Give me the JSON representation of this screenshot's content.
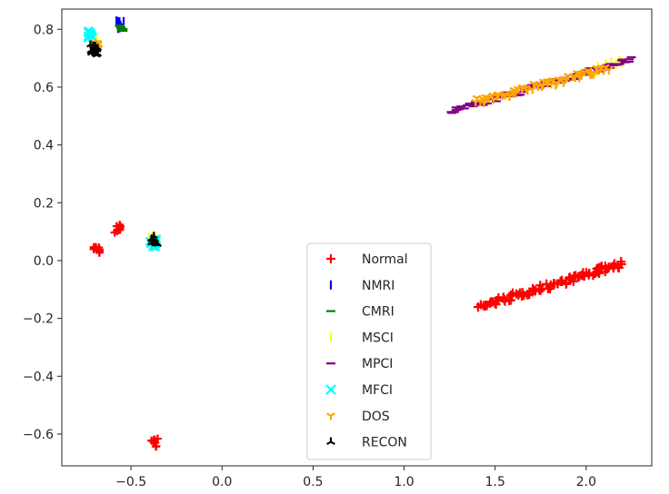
{
  "chart_data": {
    "type": "scatter",
    "title": "",
    "xlabel": "",
    "ylabel": "",
    "xlim": [
      -0.88,
      2.36
    ],
    "ylim": [
      -0.71,
      0.87
    ],
    "grid": false,
    "legend_placement": "lower-center",
    "x_ticks": [
      -0.5,
      0.0,
      0.5,
      1.0,
      1.5,
      2.0
    ],
    "x_tick_labels": [
      "−0.5",
      "0.0",
      "0.5",
      "1.0",
      "1.5",
      "2.0"
    ],
    "y_ticks": [
      0.8,
      0.6,
      0.4,
      0.2,
      0.0,
      -0.2,
      -0.4,
      -0.6
    ],
    "y_tick_labels": [
      "0.8",
      "0.6",
      "0.4",
      "0.2",
      "0.0",
      "−0.2",
      "−0.4",
      "−0.6"
    ],
    "series": [
      {
        "name": "Normal",
        "marker": "plus",
        "color": "#ff0000",
        "clusters": [
          [
            -0.57,
            0.11
          ],
          [
            -0.69,
            0.04
          ],
          [
            -0.37,
            -0.63
          ]
        ],
        "band": {
          "from": [
            1.41,
            -0.16
          ],
          "to": [
            2.2,
            -0.01
          ],
          "count": 90
        }
      },
      {
        "name": "NMRI",
        "marker": "vline",
        "color": "#0000ff",
        "clusters": [
          [
            -0.56,
            0.815
          ]
        ]
      },
      {
        "name": "CMRI",
        "marker": "hline",
        "color": "#008000",
        "clusters": [
          [
            -0.56,
            0.81
          ]
        ]
      },
      {
        "name": "MSCI",
        "marker": "vline",
        "color": "#ffff00",
        "clusters": [
          [
            -0.7,
            0.75
          ],
          [
            -0.38,
            0.07
          ]
        ],
        "band": {
          "from": [
            2.05,
            0.66
          ],
          "to": [
            2.2,
            0.69
          ],
          "count": 8
        }
      },
      {
        "name": "MPCI",
        "marker": "hline",
        "color": "#800080",
        "band": {
          "from": [
            1.25,
            0.515
          ],
          "to": [
            2.25,
            0.695
          ],
          "count": 90
        }
      },
      {
        "name": "MFCI",
        "marker": "x",
        "color": "#00ffff",
        "clusters": [
          [
            -0.72,
            0.78
          ],
          [
            -0.38,
            0.06
          ]
        ]
      },
      {
        "name": "DOS",
        "marker": "tri_down",
        "color": "#ffa500",
        "clusters": [
          [
            -0.69,
            0.74
          ]
        ],
        "band": {
          "from": [
            1.39,
            0.55
          ],
          "to": [
            2.12,
            0.665
          ],
          "count": 70
        }
      },
      {
        "name": "RECON",
        "marker": "tri_up",
        "color": "#000000",
        "clusters": [
          [
            -0.71,
            0.74
          ],
          [
            -0.7,
            0.72
          ],
          [
            -0.37,
            0.07
          ]
        ]
      }
    ]
  }
}
